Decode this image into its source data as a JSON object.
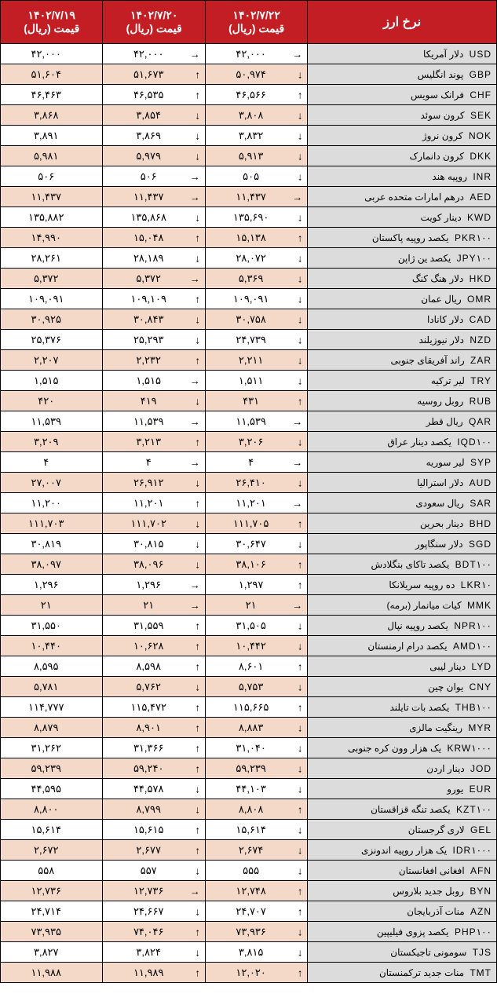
{
  "header": {
    "main": "نرخ ارز",
    "dates": [
      "۱۴۰۲/۷/۲۲",
      "۱۴۰۲/۷/۲۰",
      "۱۴۰۲/۷/۱۹"
    ],
    "price_label": "قیمت (ریال)"
  },
  "rows": [
    {
      "code": "USD",
      "name": "دلار آمریکا",
      "alt": false,
      "p": [
        {
          "v": "۴۲,۰۰۰",
          "a": "→"
        },
        {
          "v": "۴۲,۰۰۰",
          "a": "→"
        },
        {
          "v": "۴۲,۰۰۰",
          "a": ""
        }
      ]
    },
    {
      "code": "GBP",
      "name": "پوند انگلیس",
      "alt": true,
      "p": [
        {
          "v": "۵۰,۹۷۴",
          "a": "↓"
        },
        {
          "v": "۵۱,۶۷۳",
          "a": "↑"
        },
        {
          "v": "۵۱,۶۰۴",
          "a": ""
        }
      ]
    },
    {
      "code": "CHF",
      "name": "فرانک سویس",
      "alt": false,
      "p": [
        {
          "v": "۴۶,۵۶۶",
          "a": "↑"
        },
        {
          "v": "۴۶,۵۳۵",
          "a": "↑"
        },
        {
          "v": "۴۶,۴۶۳",
          "a": ""
        }
      ]
    },
    {
      "code": "SEK",
      "name": "کرون سوئد",
      "alt": true,
      "p": [
        {
          "v": "۳,۸۰۸",
          "a": "↓"
        },
        {
          "v": "۳,۸۵۴",
          "a": "↓"
        },
        {
          "v": "۳,۸۶۸",
          "a": ""
        }
      ]
    },
    {
      "code": "NOK",
      "name": "کرون نروژ",
      "alt": false,
      "p": [
        {
          "v": "۳,۸۳۲",
          "a": "↓"
        },
        {
          "v": "۳,۸۶۹",
          "a": "↓"
        },
        {
          "v": "۳,۸۹۱",
          "a": ""
        }
      ]
    },
    {
      "code": "DKK",
      "name": "کرون دانمارک",
      "alt": true,
      "p": [
        {
          "v": "۵,۹۱۳",
          "a": "↓"
        },
        {
          "v": "۵,۹۷۹",
          "a": "↓"
        },
        {
          "v": "۵,۹۸۱",
          "a": ""
        }
      ]
    },
    {
      "code": "INR",
      "name": "روپیه هند",
      "alt": false,
      "p": [
        {
          "v": "۵۰۵",
          "a": "↓"
        },
        {
          "v": "۵۰۶",
          "a": "→"
        },
        {
          "v": "۵۰۶",
          "a": ""
        }
      ]
    },
    {
      "code": "AED",
      "name": "درهم امارات متحده عربی",
      "alt": true,
      "p": [
        {
          "v": "۱۱,۴۳۷",
          "a": "→"
        },
        {
          "v": "۱۱,۴۳۷",
          "a": "→"
        },
        {
          "v": "۱۱,۴۳۷",
          "a": ""
        }
      ]
    },
    {
      "code": "KWD",
      "name": "دینار کویت",
      "alt": false,
      "p": [
        {
          "v": "۱۳۵,۶۹۰",
          "a": "↓"
        },
        {
          "v": "۱۳۵,۸۶۸",
          "a": "↓"
        },
        {
          "v": "۱۳۵,۸۸۲",
          "a": ""
        }
      ]
    },
    {
      "code": "PKR۱۰۰",
      "name": "یکصد روپیه پاکستان",
      "alt": true,
      "p": [
        {
          "v": "۱۵,۱۳۸",
          "a": "↑"
        },
        {
          "v": "۱۵,۰۴۸",
          "a": "↑"
        },
        {
          "v": "۱۴,۹۹۰",
          "a": ""
        }
      ]
    },
    {
      "code": "JPY۱۰۰",
      "name": "یکصد ین ژاپن",
      "alt": false,
      "p": [
        {
          "v": "۲۸,۰۷۲",
          "a": "↓"
        },
        {
          "v": "۲۸,۱۸۹",
          "a": "↓"
        },
        {
          "v": "۲۸,۲۶۱",
          "a": ""
        }
      ]
    },
    {
      "code": "HKD",
      "name": "دلار هنگ کنگ",
      "alt": true,
      "p": [
        {
          "v": "۵,۳۶۹",
          "a": "↓"
        },
        {
          "v": "۵,۳۷۲",
          "a": "→"
        },
        {
          "v": "۵,۳۷۲",
          "a": ""
        }
      ]
    },
    {
      "code": "OMR",
      "name": "ریال عمان",
      "alt": false,
      "p": [
        {
          "v": "۱۰۹,۰۹۱",
          "a": "↓"
        },
        {
          "v": "۱۰۹,۱۰۹",
          "a": "↑"
        },
        {
          "v": "۱۰۹,۰۹۱",
          "a": ""
        }
      ]
    },
    {
      "code": "CAD",
      "name": "دلار کانادا",
      "alt": true,
      "p": [
        {
          "v": "۳۰,۷۵۸",
          "a": "↓"
        },
        {
          "v": "۳۰,۸۴۳",
          "a": "↓"
        },
        {
          "v": "۳۰,۹۲۵",
          "a": ""
        }
      ]
    },
    {
      "code": "NZD",
      "name": "دلار نیوزیلند",
      "alt": false,
      "p": [
        {
          "v": "۲۴,۷۳۹",
          "a": "↓"
        },
        {
          "v": "۲۵,۲۹۳",
          "a": "↓"
        },
        {
          "v": "۲۵,۳۷۶",
          "a": ""
        }
      ]
    },
    {
      "code": "ZAR",
      "name": "راند آفریقای جنوبی",
      "alt": true,
      "p": [
        {
          "v": "۲,۲۱۱",
          "a": "↓"
        },
        {
          "v": "۲,۲۳۲",
          "a": "↑"
        },
        {
          "v": "۲,۲۰۷",
          "a": ""
        }
      ]
    },
    {
      "code": "TRY",
      "name": "لیر ترکیه",
      "alt": false,
      "p": [
        {
          "v": "۱,۵۱۱",
          "a": "↓"
        },
        {
          "v": "۱,۵۱۵",
          "a": "→"
        },
        {
          "v": "۱,۵۱۵",
          "a": ""
        }
      ]
    },
    {
      "code": "RUB",
      "name": "روبل روسیه",
      "alt": true,
      "p": [
        {
          "v": "۴۳۱",
          "a": "↑"
        },
        {
          "v": "۴۱۹",
          "a": "↓"
        },
        {
          "v": "۴۲۰",
          "a": ""
        }
      ]
    },
    {
      "code": "QAR",
      "name": "ریال قطر",
      "alt": false,
      "p": [
        {
          "v": "۱۱,۵۳۹",
          "a": "→"
        },
        {
          "v": "۱۱,۵۳۹",
          "a": "→"
        },
        {
          "v": "۱۱,۵۳۹",
          "a": ""
        }
      ]
    },
    {
      "code": "IQD۱۰۰",
      "name": "یکصد دینار عراق",
      "alt": true,
      "p": [
        {
          "v": "۳,۲۰۶",
          "a": "↓"
        },
        {
          "v": "۳,۲۱۳",
          "a": "↑"
        },
        {
          "v": "۳,۲۰۹",
          "a": ""
        }
      ]
    },
    {
      "code": "SYP",
      "name": "لیر سوریه",
      "alt": false,
      "p": [
        {
          "v": "۴",
          "a": "→"
        },
        {
          "v": "۴",
          "a": "→"
        },
        {
          "v": "۴",
          "a": ""
        }
      ]
    },
    {
      "code": "AUD",
      "name": "دلار استرالیا",
      "alt": true,
      "p": [
        {
          "v": "۲۶,۴۱۰",
          "a": "↓"
        },
        {
          "v": "۲۶,۹۱۲",
          "a": "↓"
        },
        {
          "v": "۲۷,۰۰۷",
          "a": ""
        }
      ]
    },
    {
      "code": "SAR",
      "name": "ریال سعودی",
      "alt": false,
      "p": [
        {
          "v": "۱۱,۲۰۱",
          "a": "→"
        },
        {
          "v": "۱۱,۲۰۱",
          "a": "↑"
        },
        {
          "v": "۱۱,۲۰۰",
          "a": ""
        }
      ]
    },
    {
      "code": "BHD",
      "name": "دینار بحرین",
      "alt": true,
      "p": [
        {
          "v": "۱۱۱,۷۰۵",
          "a": "↑"
        },
        {
          "v": "۱۱۱,۷۰۲",
          "a": "↓"
        },
        {
          "v": "۱۱۱,۷۰۳",
          "a": ""
        }
      ]
    },
    {
      "code": "SGD",
      "name": "دلار سنگاپور",
      "alt": false,
      "p": [
        {
          "v": "۳۰,۶۴۷",
          "a": "↓"
        },
        {
          "v": "۳۰,۸۱۵",
          "a": "↓"
        },
        {
          "v": "۳۰,۸۱۹",
          "a": ""
        }
      ]
    },
    {
      "code": "BDT۱۰۰",
      "name": "یکصد تاکای بنگلادش",
      "alt": true,
      "p": [
        {
          "v": "۳۸,۱۰۶",
          "a": "↑"
        },
        {
          "v": "۳۸,۰۹۶",
          "a": "↓"
        },
        {
          "v": "۳۸,۰۹۷",
          "a": ""
        }
      ]
    },
    {
      "code": "LKR۱۰",
      "name": "ده روپیه سریلانکا",
      "alt": false,
      "p": [
        {
          "v": "۱,۲۹۷",
          "a": "↑"
        },
        {
          "v": "۱,۲۹۶",
          "a": "→"
        },
        {
          "v": "۱,۲۹۶",
          "a": ""
        }
      ]
    },
    {
      "code": "MMK",
      "name": "کیات میانمار (برمه)",
      "alt": true,
      "p": [
        {
          "v": "۲۱",
          "a": "→"
        },
        {
          "v": "۲۱",
          "a": "→"
        },
        {
          "v": "۲۱",
          "a": ""
        }
      ]
    },
    {
      "code": "NPR۱۰۰",
      "name": "یکصد روپیه نپال",
      "alt": false,
      "p": [
        {
          "v": "۳۱,۵۰۵",
          "a": "↓"
        },
        {
          "v": "۳۱,۵۵۹",
          "a": "↑"
        },
        {
          "v": "۳۱,۵۵۰",
          "a": ""
        }
      ]
    },
    {
      "code": "AMD۱۰۰",
      "name": "یکصد درام ارمنستان",
      "alt": true,
      "p": [
        {
          "v": "۱۰,۴۴۲",
          "a": "↓"
        },
        {
          "v": "۱۰,۶۲۸",
          "a": "↑"
        },
        {
          "v": "۱۰,۴۴۰",
          "a": ""
        }
      ]
    },
    {
      "code": "LYD",
      "name": "دینار لیبی",
      "alt": false,
      "p": [
        {
          "v": "۸,۶۰۱",
          "a": "↑"
        },
        {
          "v": "۸,۵۹۸",
          "a": "↑"
        },
        {
          "v": "۸,۵۹۵",
          "a": ""
        }
      ]
    },
    {
      "code": "CNY",
      "name": "یوان چین",
      "alt": true,
      "p": [
        {
          "v": "۵,۷۵۳",
          "a": "↓"
        },
        {
          "v": "۵,۷۶۲",
          "a": "↓"
        },
        {
          "v": "۵,۷۸۱",
          "a": ""
        }
      ]
    },
    {
      "code": "THB۱۰۰",
      "name": "یکصد بات تایلند",
      "alt": false,
      "p": [
        {
          "v": "۱۱۵,۶۶۵",
          "a": "↑"
        },
        {
          "v": "۱۱۵,۴۷۲",
          "a": "↑"
        },
        {
          "v": "۱۱۴,۷۷۷",
          "a": ""
        }
      ]
    },
    {
      "code": "MYR",
      "name": "رینگیت مالزی",
      "alt": true,
      "p": [
        {
          "v": "۸,۸۸۳",
          "a": "↓"
        },
        {
          "v": "۸,۹۰۱",
          "a": "↑"
        },
        {
          "v": "۸,۸۷۹",
          "a": ""
        }
      ]
    },
    {
      "code": "KRW۱۰۰۰",
      "name": "یک هزار وون کره جنوبی",
      "alt": false,
      "p": [
        {
          "v": "۳۱,۰۴۰",
          "a": "↓"
        },
        {
          "v": "۳۱,۳۶۶",
          "a": "↑"
        },
        {
          "v": "۳۱,۲۶۲",
          "a": ""
        }
      ]
    },
    {
      "code": "JOD",
      "name": "دینار اردن",
      "alt": true,
      "p": [
        {
          "v": "۵۹,۲۳۹",
          "a": "↓"
        },
        {
          "v": "۵۹,۲۴۰",
          "a": "↑"
        },
        {
          "v": "۵۹,۲۳۹",
          "a": ""
        }
      ]
    },
    {
      "code": "EUR",
      "name": "یورو",
      "alt": false,
      "p": [
        {
          "v": "۴۴,۱۰۳",
          "a": "↓"
        },
        {
          "v": "۴۴,۵۷۸",
          "a": "↓"
        },
        {
          "v": "۴۴,۵۹۵",
          "a": ""
        }
      ]
    },
    {
      "code": "KZT۱۰۰",
      "name": "یکصد تنگه قزاقستان",
      "alt": true,
      "p": [
        {
          "v": "۸,۸۰۸",
          "a": "↑"
        },
        {
          "v": "۸,۷۹۹",
          "a": "↓"
        },
        {
          "v": "۸,۸۰۰",
          "a": ""
        }
      ]
    },
    {
      "code": "GEL",
      "name": "لاری گرجستان",
      "alt": false,
      "p": [
        {
          "v": "۱۵,۶۱۴",
          "a": "↓"
        },
        {
          "v": "۱۵,۶۱۵",
          "a": "↑"
        },
        {
          "v": "۱۵,۶۱۴",
          "a": ""
        }
      ]
    },
    {
      "code": "IDR۱۰۰۰",
      "name": "یک هزار روپیه اندونزی",
      "alt": true,
      "p": [
        {
          "v": "۲,۶۷۴",
          "a": "↓"
        },
        {
          "v": "۲,۶۷۷",
          "a": "↑"
        },
        {
          "v": "۲,۶۷۲",
          "a": ""
        }
      ]
    },
    {
      "code": "AFN",
      "name": "افغانی افغانستان",
      "alt": false,
      "p": [
        {
          "v": "۵۵۵",
          "a": "↓"
        },
        {
          "v": "۵۵۷",
          "a": "↓"
        },
        {
          "v": "۵۵۸",
          "a": ""
        }
      ]
    },
    {
      "code": "BYN",
      "name": "روبل جدید بلاروس",
      "alt": true,
      "p": [
        {
          "v": "۱۲,۷۴۸",
          "a": "↑"
        },
        {
          "v": "۱۲,۷۳۶",
          "a": "→"
        },
        {
          "v": "۱۲,۷۳۶",
          "a": ""
        }
      ]
    },
    {
      "code": "AZN",
      "name": "منات آذربایجان",
      "alt": false,
      "p": [
        {
          "v": "۲۴,۷۰۷",
          "a": "↑"
        },
        {
          "v": "۲۴,۶۶۷",
          "a": "↓"
        },
        {
          "v": "۲۴,۷۱۴",
          "a": ""
        }
      ]
    },
    {
      "code": "PHP۱۰۰",
      "name": "یکصد پزوی فیلیپین",
      "alt": true,
      "p": [
        {
          "v": "۷۳,۹۳۶",
          "a": "↓"
        },
        {
          "v": "۷۴,۰۴۶",
          "a": "↑"
        },
        {
          "v": "۷۳,۹۳۵",
          "a": ""
        }
      ]
    },
    {
      "code": "TJS",
      "name": "سومونی تاجیکستان",
      "alt": false,
      "p": [
        {
          "v": "۳,۸۱۵",
          "a": "↓"
        },
        {
          "v": "۳,۸۲۴",
          "a": "↓"
        },
        {
          "v": "۳,۸۲۷",
          "a": ""
        }
      ]
    },
    {
      "code": "TMT",
      "name": "منات جدید ترکمنستان",
      "alt": true,
      "p": [
        {
          "v": "۱۲,۰۲۰",
          "a": "↑"
        },
        {
          "v": "۱۱,۹۸۹",
          "a": "↑"
        },
        {
          "v": "۱۱,۹۸۸",
          "a": ""
        }
      ]
    }
  ]
}
